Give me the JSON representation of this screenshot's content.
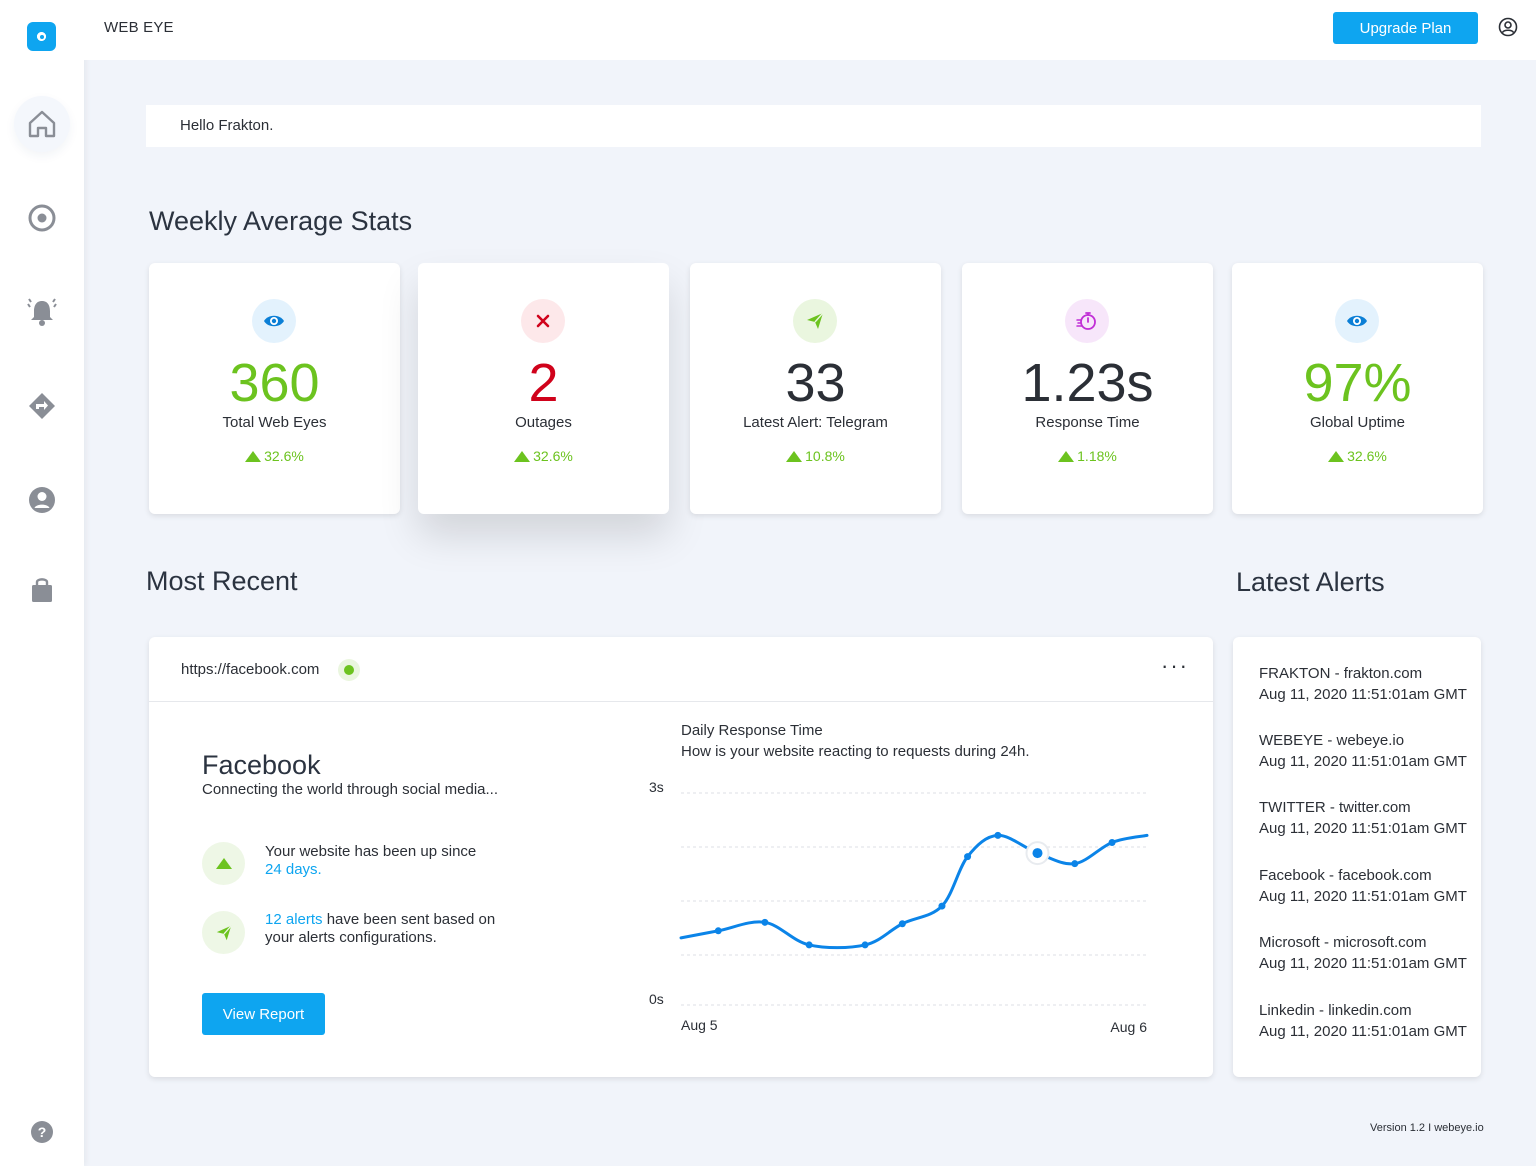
{
  "header": {
    "brand": "WEB EYE",
    "upgrade_label": "Upgrade Plan"
  },
  "greeting": "Hello Frakton.",
  "sections": {
    "weekly": "Weekly Average Stats",
    "recent": "Most Recent",
    "alerts": "Latest Alerts"
  },
  "stats": [
    {
      "value": "360",
      "label": "Total Web Eyes",
      "delta": "32.6%",
      "icon": "eye-icon",
      "color": "#6cc31f",
      "icon_bg": "#e3f2fd",
      "icon_color": "#0b7fd6"
    },
    {
      "value": "2",
      "label": "Outages",
      "delta": "32.6%",
      "icon": "close-icon",
      "color": "#d0021b",
      "icon_bg": "#fde8ea",
      "icon_color": "#d0021b"
    },
    {
      "value": "33",
      "label": "Latest Alert: Telegram",
      "delta": "10.8%",
      "icon": "paper-plane-icon",
      "color": "#2b2f36",
      "icon_bg": "#eaf6df",
      "icon_color": "#6cc31f"
    },
    {
      "value": "1.23s",
      "label": "Response Time",
      "delta": "1.18%",
      "icon": "stopwatch-icon",
      "color": "#2b2f36",
      "icon_bg": "#f7e6fa",
      "icon_color": "#c12fd6"
    },
    {
      "value": "97%",
      "label": "Global Uptime",
      "delta": "32.6%",
      "icon": "eye-icon",
      "color": "#6cc31f",
      "icon_bg": "#e3f2fd",
      "icon_color": "#0b7fd6"
    }
  ],
  "recent": {
    "url": "https://facebook.com",
    "name": "Facebook",
    "description": "Connecting the world through social media...",
    "uptime_text": "Your website has been up since",
    "uptime_days": "24 days.",
    "alerts_count": "12 alerts",
    "alerts_text": " have been sent based on",
    "alerts_text2": "your alerts configurations.",
    "view_report_label": "View Report"
  },
  "chart_data": {
    "type": "line",
    "title": "Daily Response Time",
    "subtitle": "How is your website reacting to requests during 24h.",
    "y_ticks": [
      "3s",
      "0s"
    ],
    "x_ticks": [
      "Aug 5",
      "Aug 6"
    ],
    "ylim": [
      0,
      3
    ],
    "grid": true,
    "x": [
      0,
      0.08,
      0.18,
      0.275,
      0.395,
      0.475,
      0.56,
      0.615,
      0.68,
      0.765,
      0.845,
      0.925,
      1.0
    ],
    "values": [
      0.95,
      1.05,
      1.17,
      0.85,
      0.85,
      1.15,
      1.4,
      2.1,
      2.4,
      2.15,
      2.0,
      2.3,
      2.4
    ],
    "highlight_index": 9
  },
  "alerts": [
    {
      "site": "FRAKTON - frakton.com",
      "time": "Aug 11, 2020 11:51:01am GMT"
    },
    {
      "site": "WEBEYE - webeye.io",
      "time": "Aug 11, 2020 11:51:01am GMT"
    },
    {
      "site": "TWITTER - twitter.com",
      "time": "Aug 11, 2020 11:51:01am GMT"
    },
    {
      "site": "Facebook - facebook.com",
      "time": "Aug 11, 2020 11:51:01am GMT"
    },
    {
      "site": "Microsoft - microsoft.com",
      "time": "Aug 11, 2020 11:51:01am GMT"
    },
    {
      "site": "Linkedin - linkedin.com",
      "time": "Aug 11, 2020 11:51:01am GMT"
    }
  ],
  "footer": {
    "version": "Version 1.2 I webeye.io"
  },
  "sidebar": {
    "help": "?"
  }
}
